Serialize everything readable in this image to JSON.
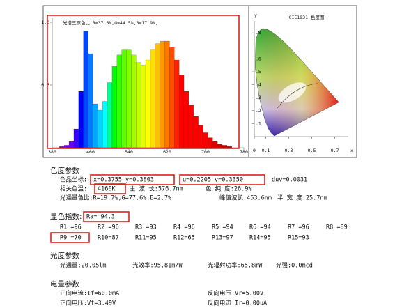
{
  "spectrum": {
    "title": "光谱三原色比 R=37.6%,G=44.5%,B=17.9%,",
    "xlim": [
      380,
      780
    ],
    "ylim": [
      0,
      1
    ],
    "xticks": [
      380,
      460,
      540,
      620,
      700,
      780
    ],
    "yticks": [
      {
        "value": 1,
        "label": "1.0"
      },
      {
        "value": 0.5,
        "label": "0.5"
      }
    ],
    "wavelengths": [
      400,
      410,
      420,
      430,
      440,
      450,
      460,
      470,
      480,
      490,
      500,
      510,
      520,
      530,
      540,
      550,
      560,
      570,
      580,
      590,
      600,
      610,
      620,
      630,
      640,
      650,
      660,
      670,
      680,
      690,
      700,
      710,
      720,
      730,
      740,
      750,
      760,
      770,
      780
    ],
    "values": [
      0.01,
      0.02,
      0.05,
      0.15,
      0.45,
      0.93,
      0.75,
      0.35,
      0.3,
      0.37,
      0.52,
      0.65,
      0.74,
      0.78,
      0.78,
      0.74,
      0.68,
      0.66,
      0.7,
      0.78,
      0.83,
      0.85,
      0.85,
      0.8,
      0.7,
      0.58,
      0.45,
      0.34,
      0.25,
      0.18,
      0.12,
      0.08,
      0.05,
      0.03,
      0.02,
      0.01,
      0,
      0,
      0
    ]
  },
  "cie": {
    "title": "CIE1931 色度图",
    "x_label": "x",
    "y_label": "y",
    "xticks": [
      0,
      0.1,
      0.3,
      0.5,
      0.7
    ],
    "yticks": [
      {
        "value": 0.8,
        "label": ".8"
      },
      {
        "value": 0.6,
        "label": ".6"
      },
      {
        "value": 0.5,
        "label": ".5"
      },
      {
        "value": 0.4,
        "label": ".4"
      },
      {
        "value": 0.3,
        "label": ".3"
      },
      {
        "value": 0.2,
        "label": ".2"
      },
      {
        "value": 0.1,
        "label": ".1"
      }
    ]
  },
  "chromaticity": {
    "heading": "色度参数",
    "coord_label": "色品坐标:",
    "xy": "x=0.3755  y=0.3803",
    "uv": "u=0.2205  v=0.3350",
    "duv": "duv=0.0031",
    "cct_label": "相关色温:",
    "cct": "4160K",
    "dominant": "主 波 长:576.7nm",
    "purity": "色 纯 度:26.9%",
    "ratio": "光通量色比:R=19.7%,G=77.6%,B=2.7%",
    "peak": "峰值波长:453.6nm",
    "fwhm": "半 宽 度:25.7nm"
  },
  "rendering": {
    "heading": "显色指数:",
    "ra": "Ra= 94.3",
    "row1": [
      "R1 =96",
      "R2 =96",
      "R3 =93",
      "R4 =96",
      "R5 =94",
      "R6 =94",
      "R7 =96",
      "R8 =89"
    ],
    "row2": [
      "R9 =70",
      "R10=87",
      "R11=95",
      "R12=65",
      "R13=97",
      "R14=95",
      "R15=93"
    ]
  },
  "photometric": {
    "heading": "光度参数",
    "items": [
      "光通量:20.05lm",
      "光效率:95.81m/W",
      "光辐射功率:65.8mW",
      "光强:0.0mcd"
    ]
  },
  "electrical": {
    "heading": "电量参数",
    "items": [
      "正向电流:If=60.0mA",
      "反向电压:Vr=5.00V",
      "正向电压:Vf=3.49V",
      "反向电流:Ir=0.00uA"
    ]
  }
}
